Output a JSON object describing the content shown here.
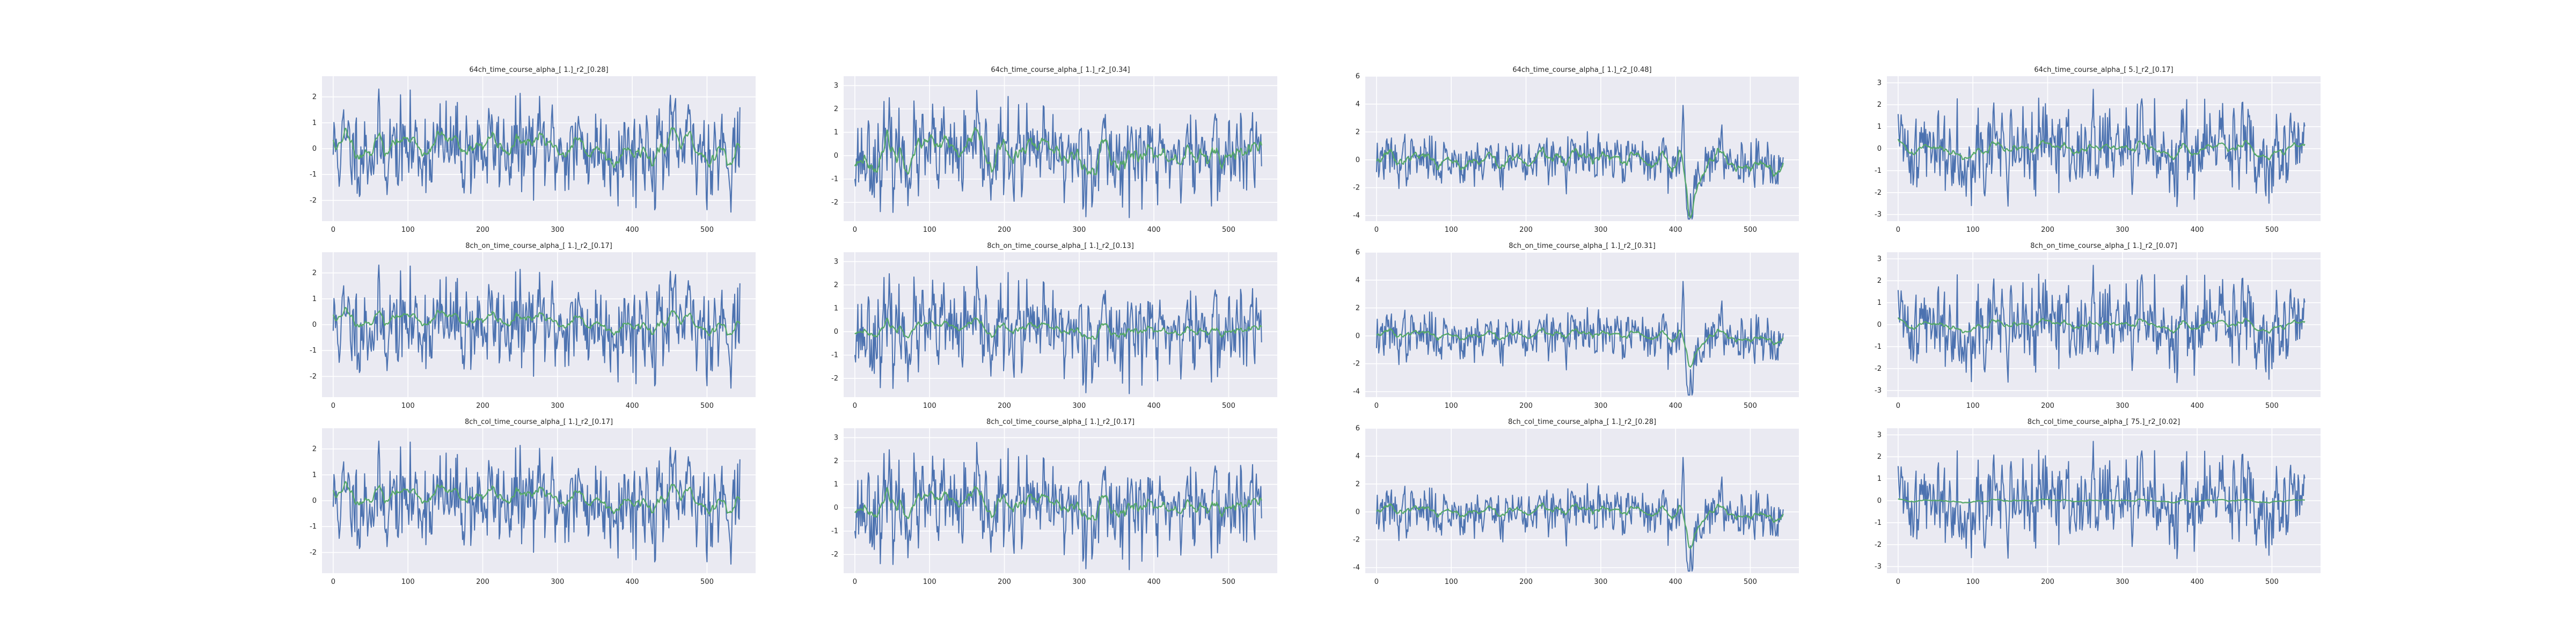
{
  "figure": {
    "background": "#ffffff",
    "axes_facecolor": "#eaeaf2",
    "grid_color": "#ffffff",
    "series_colors": {
      "signal": "#4c72b0",
      "fit": "#55a868"
    }
  },
  "chart_data": [
    {
      "type": "line",
      "title": "64ch_time_course_alpha_[ 1.]_r2_[0.28]",
      "xlim": [
        -15,
        565
      ],
      "ylim": [
        -2.8,
        2.8
      ],
      "yticks": [
        -2,
        -1,
        0,
        1,
        2
      ],
      "xticks": [
        0,
        100,
        200,
        300,
        400,
        500
      ],
      "n_points": 545,
      "seed": 11,
      "signal_amp": 0.85,
      "fit_amp": 0.4,
      "fit_offset": 0.2,
      "events": [],
      "grid": true,
      "series": [
        {
          "values": []
        },
        {
          "values": []
        }
      ]
    },
    {
      "type": "line",
      "title": "64ch_time_course_alpha_[ 1.]_r2_[0.34]",
      "xlim": [
        -15,
        565
      ],
      "ylim": [
        -2.8,
        3.4
      ],
      "yticks": [
        -2,
        -1,
        0,
        1,
        2,
        3
      ],
      "xticks": [
        0,
        100,
        200,
        300,
        400,
        500
      ],
      "n_points": 545,
      "seed": 23,
      "signal_amp": 0.9,
      "fit_amp": 0.5,
      "fit_offset": 0.0,
      "events": [],
      "grid": true,
      "series": [
        {
          "values": []
        },
        {
          "values": []
        }
      ]
    },
    {
      "type": "line",
      "title": "64ch_time_course_alpha_[ 1.]_r2_[0.48]",
      "xlim": [
        -15,
        565
      ],
      "ylim": [
        -4.4,
        6.0
      ],
      "yticks": [
        -4,
        -2,
        0,
        2,
        4,
        6
      ],
      "xticks": [
        0,
        100,
        200,
        300,
        400,
        500
      ],
      "n_points": 545,
      "seed": 37,
      "signal_amp": 0.8,
      "fit_amp": 0.55,
      "fit_offset": 0.0,
      "events": [
        {
          "x": 418,
          "y": -3.8,
          "width": 7
        },
        {
          "x": 410,
          "y": 4.5,
          "width": 2
        }
      ],
      "grid": true,
      "series": [
        {
          "values": []
        },
        {
          "values": []
        }
      ]
    },
    {
      "type": "line",
      "title": "64ch_time_course_alpha_[ 5.]_r2_[0.17]",
      "xlim": [
        -15,
        565
      ],
      "ylim": [
        -3.3,
        3.3
      ],
      "yticks": [
        -3,
        -2,
        -1,
        0,
        1,
        2,
        3
      ],
      "xticks": [
        0,
        100,
        200,
        300,
        400,
        500
      ],
      "n_points": 545,
      "seed": 41,
      "signal_amp": 0.95,
      "fit_amp": 0.2,
      "fit_offset": 0.0,
      "events": [],
      "grid": true,
      "series": [
        {
          "values": []
        },
        {
          "values": []
        }
      ]
    },
    {
      "type": "line",
      "title": "8ch_on_time_course_alpha_[ 1.]_r2_[0.17]",
      "xlim": [
        -15,
        565
      ],
      "ylim": [
        -2.8,
        2.8
      ],
      "yticks": [
        -2,
        -1,
        0,
        1,
        2
      ],
      "xticks": [
        0,
        100,
        200,
        300,
        400,
        500
      ],
      "n_points": 545,
      "seed": 11,
      "signal_amp": 0.85,
      "fit_amp": 0.25,
      "fit_offset": 0.3,
      "events": [],
      "grid": true,
      "series": [
        {
          "values": []
        },
        {
          "values": []
        }
      ]
    },
    {
      "type": "line",
      "title": "8ch_on_time_course_alpha_[ 1.]_r2_[0.13]",
      "xlim": [
        -15,
        565
      ],
      "ylim": [
        -2.8,
        3.4
      ],
      "yticks": [
        -2,
        -1,
        0,
        1,
        2,
        3
      ],
      "xticks": [
        0,
        100,
        200,
        300,
        400,
        500
      ],
      "n_points": 545,
      "seed": 23,
      "signal_amp": 0.9,
      "fit_amp": 0.22,
      "fit_offset": 0.1,
      "events": [],
      "grid": true,
      "series": [
        {
          "values": []
        },
        {
          "values": []
        }
      ]
    },
    {
      "type": "line",
      "title": "8ch_on_time_course_alpha_[ 1.]_r2_[0.31]",
      "xlim": [
        -15,
        565
      ],
      "ylim": [
        -4.4,
        6.0
      ],
      "yticks": [
        -4,
        -2,
        0,
        2,
        4,
        6
      ],
      "xticks": [
        0,
        100,
        200,
        300,
        400,
        500
      ],
      "n_points": 545,
      "seed": 37,
      "signal_amp": 0.8,
      "fit_amp": 0.3,
      "fit_offset": 0.1,
      "events": [
        {
          "x": 418,
          "y": -3.8,
          "width": 7
        },
        {
          "x": 410,
          "y": 4.5,
          "width": 2
        }
      ],
      "grid": true,
      "series": [
        {
          "values": []
        },
        {
          "values": []
        }
      ]
    },
    {
      "type": "line",
      "title": "8ch_on_time_course_alpha_[ 1.]_r2_[0.07]",
      "xlim": [
        -15,
        565
      ],
      "ylim": [
        -3.3,
        3.3
      ],
      "yticks": [
        -3,
        -2,
        -1,
        0,
        1,
        2,
        3
      ],
      "xticks": [
        0,
        100,
        200,
        300,
        400,
        500
      ],
      "n_points": 545,
      "seed": 41,
      "signal_amp": 0.95,
      "fit_amp": 0.15,
      "fit_offset": 0.0,
      "events": [],
      "grid": true,
      "series": [
        {
          "values": []
        },
        {
          "values": []
        }
      ]
    },
    {
      "type": "line",
      "title": "8ch_col_time_course_alpha_[ 1.]_r2_[0.17]",
      "xlim": [
        -15,
        565
      ],
      "ylim": [
        -2.8,
        2.8
      ],
      "yticks": [
        -2,
        -1,
        0,
        1,
        2
      ],
      "xticks": [
        0,
        100,
        200,
        300,
        400,
        500
      ],
      "n_points": 545,
      "seed": 11,
      "signal_amp": 0.85,
      "fit_amp": 0.3,
      "fit_offset": 0.3,
      "events": [],
      "grid": true,
      "series": [
        {
          "values": []
        },
        {
          "values": []
        }
      ]
    },
    {
      "type": "line",
      "title": "8ch_col_time_course_alpha_[ 1.]_r2_[0.17]",
      "xlim": [
        -15,
        565
      ],
      "ylim": [
        -2.8,
        3.4
      ],
      "yticks": [
        -2,
        -1,
        0,
        1,
        2,
        3
      ],
      "xticks": [
        0,
        100,
        200,
        300,
        400,
        500
      ],
      "n_points": 545,
      "seed": 23,
      "signal_amp": 0.9,
      "fit_amp": 0.35,
      "fit_offset": 0.1,
      "events": [],
      "grid": true,
      "series": [
        {
          "values": []
        },
        {
          "values": []
        }
      ]
    },
    {
      "type": "line",
      "title": "8ch_col_time_course_alpha_[ 1.]_r2_[0.28]",
      "xlim": [
        -15,
        565
      ],
      "ylim": [
        -4.4,
        6.0
      ],
      "yticks": [
        -4,
        -2,
        0,
        2,
        4,
        6
      ],
      "xticks": [
        0,
        100,
        200,
        300,
        400,
        500
      ],
      "n_points": 545,
      "seed": 37,
      "signal_amp": 0.8,
      "fit_amp": 0.35,
      "fit_offset": 0.1,
      "events": [
        {
          "x": 418,
          "y": -3.8,
          "width": 7
        },
        {
          "x": 410,
          "y": 4.5,
          "width": 2
        }
      ],
      "grid": true,
      "series": [
        {
          "values": []
        },
        {
          "values": []
        }
      ]
    },
    {
      "type": "line",
      "title": "8ch_col_time_course_alpha_[ 75.]_r2_[0.02]",
      "xlim": [
        -15,
        565
      ],
      "ylim": [
        -3.3,
        3.3
      ],
      "yticks": [
        -3,
        -2,
        -1,
        0,
        1,
        2,
        3
      ],
      "xticks": [
        0,
        100,
        200,
        300,
        400,
        500
      ],
      "n_points": 545,
      "seed": 41,
      "signal_amp": 0.95,
      "fit_amp": 0.04,
      "fit_offset": 0.0,
      "events": [],
      "grid": true,
      "series": [
        {
          "values": []
        },
        {
          "values": []
        }
      ]
    }
  ]
}
